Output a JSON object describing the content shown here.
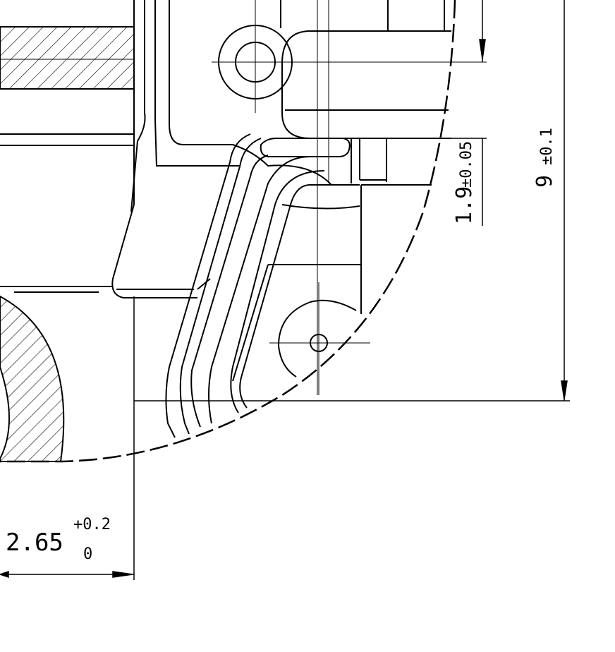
{
  "colors": {
    "ink": "#000000",
    "paper": "#ffffff"
  },
  "dimensions": {
    "vertical_small": {
      "label": "1.9",
      "tolerance": "±0.05"
    },
    "vertical_large": {
      "label": "9",
      "tolerance": "±0.1"
    },
    "horizontal": {
      "label": "2.65",
      "upper_tolerance": "+0.2",
      "lower_tolerance": "0"
    }
  }
}
